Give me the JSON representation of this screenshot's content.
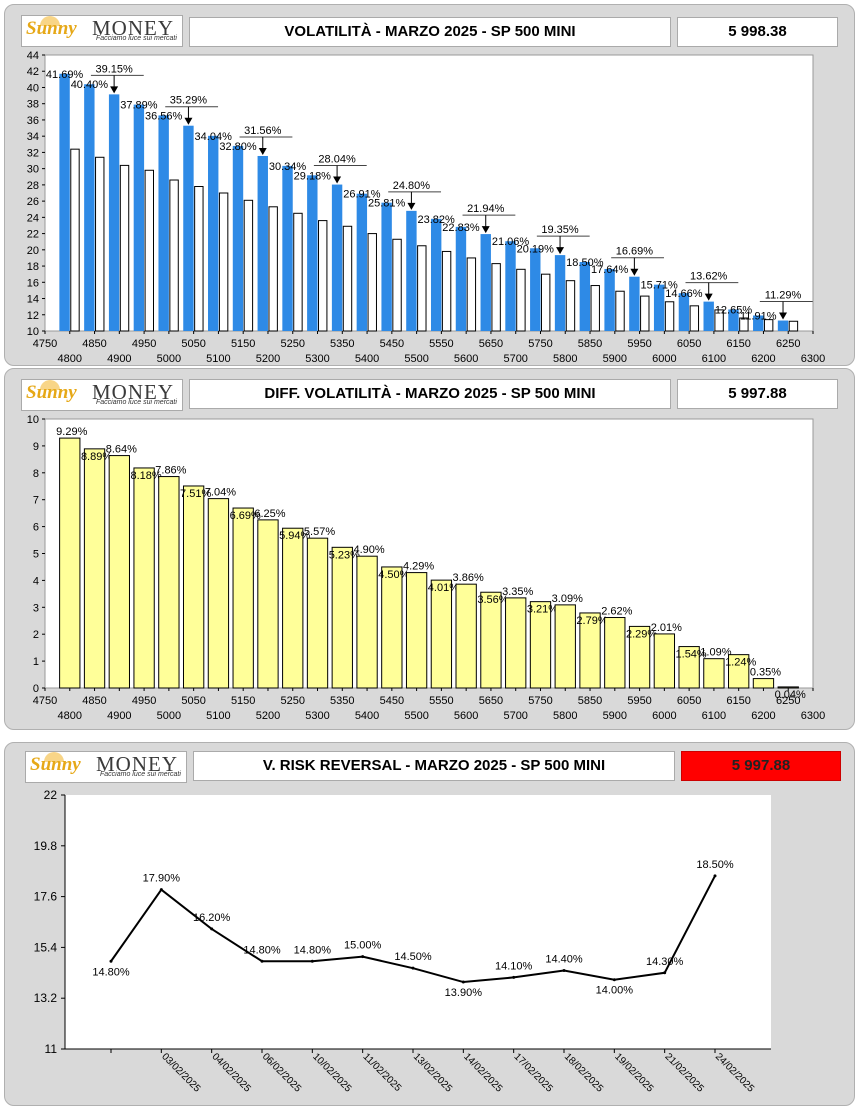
{
  "brand": {
    "name_part1": "Sunny",
    "name_part2": "MONEY",
    "tagline": "Facciamo luce sui mercati"
  },
  "panels": [
    {
      "title": "VOLATILITÀ - MARZO 2025 - SP 500 MINI",
      "price": "5 998.38"
    },
    {
      "title": "DIFF. VOLATILITÀ - MARZO 2025 - SP 500 MINI",
      "price": "5 997.88"
    },
    {
      "title": "V. RISK REVERSAL - MARZO 2025 - SP 500 MINI",
      "price": "5 997.88"
    }
  ],
  "colors": {
    "blue_bar": "#2e8ae6",
    "yellow_bar": "#ffff99",
    "price_alert": "#ff0000",
    "line": "#000000"
  },
  "chart_data": [
    {
      "type": "bar",
      "categories": [
        4800,
        4850,
        4900,
        4950,
        5000,
        5050,
        5100,
        5150,
        5200,
        5250,
        5300,
        5350,
        5400,
        5450,
        5500,
        5550,
        5600,
        5650,
        5700,
        5750,
        5800,
        5850,
        5900,
        5950,
        6000,
        6050,
        6100,
        6150,
        6200,
        6250
      ],
      "series": [
        {
          "values": [
            41.69,
            40.4,
            39.15,
            37.89,
            36.56,
            35.29,
            34.04,
            32.8,
            31.56,
            30.34,
            29.18,
            28.04,
            26.91,
            25.81,
            24.8,
            23.82,
            22.83,
            21.94,
            21.06,
            20.19,
            19.35,
            18.5,
            17.64,
            16.69,
            15.71,
            14.66,
            13.62,
            12.65,
            11.91,
            11.29
          ]
        },
        {
          "values": [
            32.4,
            31.4,
            30.4,
            29.8,
            28.6,
            27.8,
            27.0,
            26.1,
            25.3,
            24.5,
            23.6,
            22.9,
            22.0,
            21.3,
            20.5,
            19.8,
            19.0,
            18.3,
            17.6,
            17.0,
            16.2,
            15.6,
            14.9,
            14.3,
            13.6,
            13.1,
            12.6,
            11.6,
            11.4,
            11.2
          ]
        }
      ],
      "value_labels": [
        "41.69%",
        "40.40%",
        "39.15%",
        "37.89%",
        "36.56%",
        "35.29%",
        "34.04%",
        "32.80%",
        "31.56%",
        "30.34%",
        "29.18%",
        "28.04%",
        "26.91%",
        "25.81%",
        "24.80%",
        "23.82%",
        "22.83%",
        "21.94%",
        "21.06%",
        "20.19%",
        "19.35%",
        "18.50%",
        "17.64%",
        "16.69%",
        "15.71%",
        "14.66%",
        "13.62%",
        "12.65%",
        "11.91%",
        "11.29%"
      ],
      "arrow_markers_at": [
        4900,
        5050,
        5200,
        5350,
        5500,
        5650,
        5800,
        5950,
        6100,
        6250
      ],
      "ylim": [
        10,
        44
      ],
      "yticks": [
        10,
        12,
        14,
        16,
        18,
        20,
        22,
        24,
        26,
        28,
        30,
        32,
        34,
        36,
        38,
        40,
        42,
        44
      ],
      "xticks_top": [
        4750,
        4850,
        4950,
        5050,
        5150,
        5250,
        5350,
        5450,
        5550,
        5650,
        5750,
        5850,
        5950,
        6050,
        6150,
        6250
      ],
      "xticks_bottom": [
        4800,
        4900,
        5000,
        5100,
        5200,
        5300,
        5400,
        5500,
        5600,
        5700,
        5800,
        5900,
        6000,
        6100,
        6200,
        6300
      ],
      "xlim": [
        4750,
        6300
      ]
    },
    {
      "type": "bar",
      "categories": [
        4800,
        4850,
        4900,
        4950,
        5000,
        5050,
        5100,
        5150,
        5200,
        5250,
        5300,
        5350,
        5400,
        5450,
        5500,
        5550,
        5600,
        5650,
        5700,
        5750,
        5800,
        5850,
        5900,
        5950,
        6000,
        6050,
        6100,
        6150,
        6200,
        6250
      ],
      "values": [
        9.29,
        8.89,
        8.64,
        8.18,
        7.86,
        7.51,
        7.04,
        6.69,
        6.25,
        5.94,
        5.57,
        5.23,
        4.9,
        4.5,
        4.29,
        4.01,
        3.86,
        3.56,
        3.35,
        3.21,
        3.09,
        2.79,
        2.62,
        2.29,
        2.01,
        1.54,
        1.09,
        1.24,
        0.35,
        0.04
      ],
      "value_labels": [
        "9.29%",
        "8.89%",
        "8.64%",
        "8.18%",
        "7.86%",
        "7.51%",
        "7.04%",
        "6.69%",
        "6.25%",
        "5.94%",
        "5.57%",
        "5.23%",
        "4.90%",
        "4.50%",
        "4.29%",
        "4.01%",
        "3.86%",
        "3.56%",
        "3.35%",
        "3.21%",
        "3.09%",
        "2.79%",
        "2.62%",
        "2.29%",
        "2.01%",
        "1.54%",
        "1.09%",
        "1.24%",
        "0.35%",
        "0.04%"
      ],
      "ylim": [
        0,
        10
      ],
      "yticks": [
        0,
        1,
        2,
        3,
        4,
        5,
        6,
        7,
        8,
        9,
        10
      ],
      "xticks_top": [
        4750,
        4850,
        4950,
        5050,
        5150,
        5250,
        5350,
        5450,
        5550,
        5650,
        5750,
        5850,
        5950,
        6050,
        6150,
        6250
      ],
      "xticks_bottom": [
        4800,
        4900,
        5000,
        5100,
        5200,
        5300,
        5400,
        5500,
        5600,
        5700,
        5800,
        5900,
        6000,
        6100,
        6200,
        6300
      ],
      "xlim": [
        4750,
        6300
      ]
    },
    {
      "type": "line",
      "x": [
        "",
        "03/02/2025",
        "04/02/2025",
        "06/02/2025",
        "10/02/2025",
        "11/02/2025",
        "13/02/2025",
        "14/02/2025",
        "17/02/2025",
        "18/02/2025",
        "19/02/2025",
        "21/02/2025",
        "24/02/2025"
      ],
      "values": [
        14.8,
        17.9,
        16.2,
        14.8,
        14.8,
        15.0,
        14.5,
        13.9,
        14.1,
        14.4,
        14.0,
        14.3,
        18.5
      ],
      "value_labels": [
        "14.80%",
        "17.90%",
        "16.20%",
        "14.80%",
        "14.80%",
        "15.00%",
        "14.50%",
        "13.90%",
        "14.10%",
        "14.40%",
        "14.00%",
        "14.30%",
        "18.50%"
      ],
      "ylim": [
        11,
        22
      ],
      "yticks": [
        "11",
        "13.2",
        "15.4",
        "17.6",
        "19.8",
        "22"
      ]
    }
  ]
}
